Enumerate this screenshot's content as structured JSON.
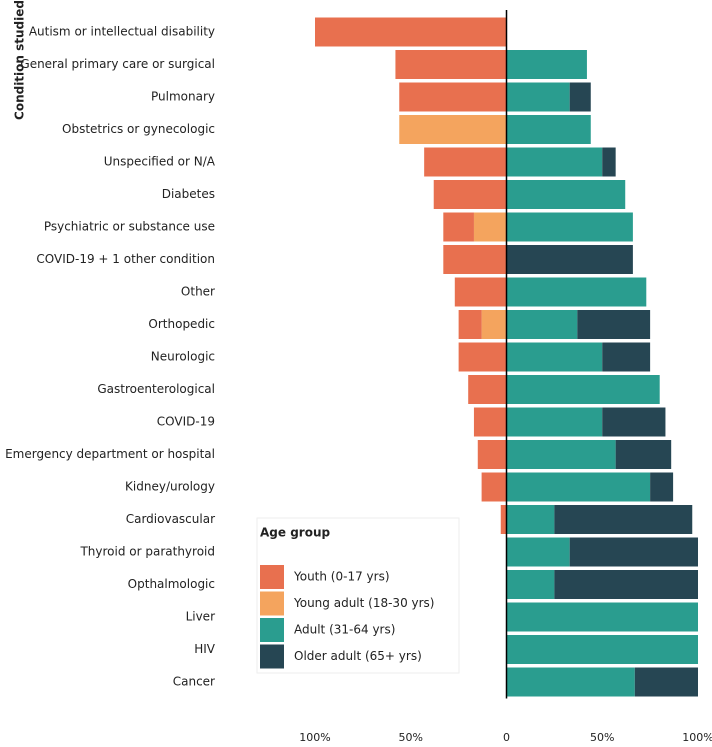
{
  "chart_data": {
    "type": "diverging_stacked_bar",
    "y_label": "Condition studied",
    "categories": [
      "Autism or intellectual disability",
      "General primary care or surgical",
      "Pulmonary",
      "Obstetrics or gynecologic",
      "Unspecified or N/A",
      "Diabetes",
      "Psychiatric or substance use",
      "COVID-19 + 1 other condition",
      "Other",
      "Orthopedic",
      "Neurologic",
      "Gastroenterological",
      "COVID-19",
      "Emergency department or hospital",
      "Kidney/urology",
      "Cardiovascular",
      "Thyroid or parathyroid",
      "Opthalmologic",
      "Liver",
      "HIV",
      "Cancer"
    ],
    "series": [
      {
        "name": "Youth (0-17 yrs)",
        "color": "#e8704f",
        "values": [
          -100,
          -58,
          -56,
          0,
          -43,
          -38,
          -16,
          -33,
          -27,
          -12,
          -25,
          -20,
          -17,
          -15,
          -13,
          -3,
          0,
          0,
          0,
          0,
          0
        ]
      },
      {
        "name": "Young adult (18-30 yrs)",
        "color": "#f4a45e",
        "values": [
          0,
          0,
          0,
          -56,
          0,
          0,
          -17,
          0,
          0,
          -13,
          0,
          0,
          0,
          0,
          0,
          0,
          0,
          0,
          0,
          0,
          0
        ]
      },
      {
        "name": "Adult (31-64 yrs)",
        "color": "#2a9d8f",
        "values": [
          0,
          42,
          33,
          44,
          50,
          62,
          66,
          0,
          73,
          37,
          50,
          80,
          50,
          57,
          75,
          25,
          33,
          25,
          100,
          100,
          67
        ]
      },
      {
        "name": "Older adult (65+ yrs)",
        "color": "#264653",
        "values": [
          0,
          0,
          11,
          0,
          7,
          0,
          0,
          66,
          0,
          38,
          25,
          0,
          33,
          29,
          12,
          72,
          67,
          75,
          0,
          0,
          33
        ]
      }
    ],
    "legend_title": "Age group",
    "xlim": [
      -100,
      100
    ],
    "xticks": [
      {
        "value": -100,
        "label": "100%"
      },
      {
        "value": -50,
        "label": "50%"
      },
      0,
      {
        "value": 50,
        "label": "50%"
      },
      {
        "value": 100,
        "label": "100%"
      }
    ]
  }
}
